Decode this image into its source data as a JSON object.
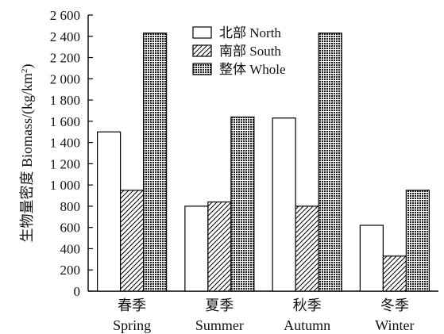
{
  "chart_data": {
    "type": "bar",
    "ylabel": {
      "prefix": "生物量密度 Biomass/(kg/km",
      "sup": "2",
      "suffix": ")"
    },
    "ylim": [
      0,
      2600
    ],
    "yticks": [
      {
        "value": 0,
        "label": "0"
      },
      {
        "value": 200,
        "label": "200"
      },
      {
        "value": 400,
        "label": "400"
      },
      {
        "value": 600,
        "label": "600"
      },
      {
        "value": 800,
        "label": "800"
      },
      {
        "value": 1000,
        "label": "1 000"
      },
      {
        "value": 1200,
        "label": "1 200"
      },
      {
        "value": 1400,
        "label": "1 400"
      },
      {
        "value": 1600,
        "label": "1 600"
      },
      {
        "value": 1800,
        "label": "1 800"
      },
      {
        "value": 2000,
        "label": "2 000"
      },
      {
        "value": 2200,
        "label": "2 200"
      },
      {
        "value": 2400,
        "label": "2 400"
      },
      {
        "value": 2600,
        "label": "2 600"
      }
    ],
    "categories": [
      {
        "cn": "春季",
        "en": "Spring"
      },
      {
        "cn": "夏季",
        "en": "Summer"
      },
      {
        "cn": "秋季",
        "en": "Autumn"
      },
      {
        "cn": "冬季",
        "en": "Winter"
      }
    ],
    "series": [
      {
        "name": "北部 North",
        "fill": "white",
        "values": [
          1500,
          800,
          1630,
          620
        ]
      },
      {
        "name": "南部 South",
        "fill": "hatch",
        "values": [
          950,
          840,
          800,
          330
        ]
      },
      {
        "name": "整体 Whole",
        "fill": "dots",
        "values": [
          2430,
          1640,
          2430,
          950
        ]
      }
    ],
    "legend_position": "top-center",
    "grid": false
  }
}
